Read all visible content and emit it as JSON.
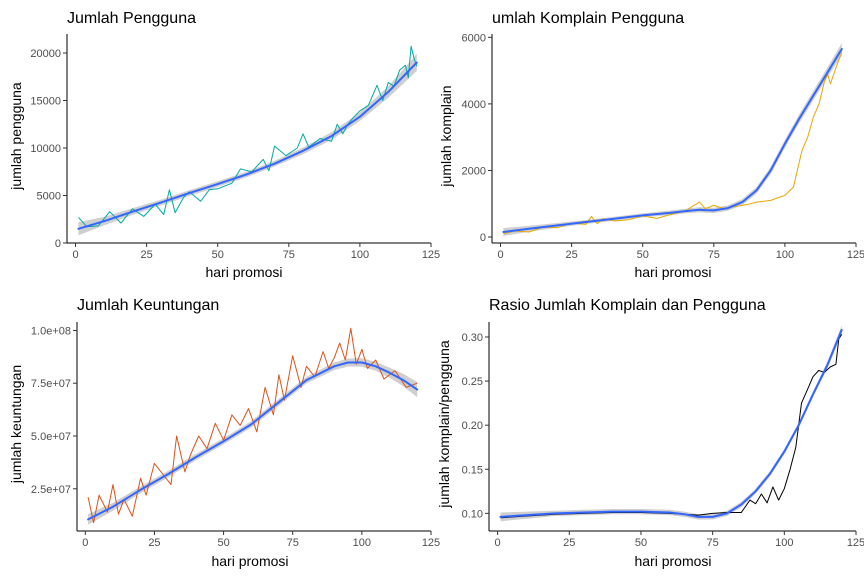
{
  "chart_data": [
    {
      "type": "line",
      "title": "Jumlah Pengguna",
      "xlabel": "hari promosi",
      "ylabel": "jumlah pengguna",
      "xlim": [
        -3,
        125
      ],
      "ylim": [
        0,
        22000
      ],
      "x_ticks": [
        0,
        25,
        50,
        75,
        100,
        125
      ],
      "x_tick_labels": [
        "0",
        "25",
        "50",
        "75",
        "100",
        "125"
      ],
      "y_ticks": [
        0,
        5000,
        10000,
        15000,
        20000
      ],
      "y_tick_labels": [
        "0",
        "5000",
        "10000",
        "15000",
        "20000"
      ],
      "series": [
        {
          "role": "data",
          "color": "#00a9a5",
          "x": [
            1,
            4,
            8,
            12,
            16,
            20,
            24,
            28,
            31,
            33,
            35,
            38,
            40,
            44,
            47,
            50,
            55,
            58,
            62,
            66,
            68,
            70,
            74,
            78,
            80,
            82,
            86,
            90,
            92,
            94,
            96,
            98,
            100,
            103,
            106,
            108,
            110,
            112,
            114,
            116,
            117,
            118,
            119,
            120
          ],
          "y": [
            2700,
            1700,
            1800,
            3300,
            2100,
            3600,
            2800,
            4100,
            3000,
            5600,
            3200,
            4800,
            5400,
            4400,
            5600,
            5700,
            6300,
            7800,
            7500,
            8800,
            7600,
            10200,
            9200,
            10000,
            11500,
            10100,
            11000,
            10700,
            12500,
            11500,
            12600,
            13300,
            13900,
            14500,
            16600,
            15000,
            16900,
            16500,
            18200,
            18700,
            17400,
            20700,
            19500,
            18600
          ]
        },
        {
          "role": "smooth",
          "color": "#3366ff",
          "band_color": "#bfbfbf",
          "x": [
            1,
            10,
            20,
            30,
            40,
            50,
            60,
            70,
            80,
            90,
            100,
            110,
            120
          ],
          "y": [
            1500,
            2300,
            3300,
            4250,
            5250,
            6200,
            7200,
            8350,
            9700,
            11250,
            13300,
            15900,
            19000
          ],
          "band_halfwidth": [
            700,
            450,
            350,
            300,
            300,
            300,
            300,
            300,
            350,
            400,
            450,
            600,
            900
          ]
        }
      ]
    },
    {
      "type": "line",
      "title": "umlah Komplain Pengguna",
      "xlabel": "hari promosi",
      "ylabel": "jumlah komplain",
      "xlim": [
        -3,
        125
      ],
      "ylim": [
        -180,
        6100
      ],
      "x_ticks": [
        0,
        25,
        50,
        75,
        100,
        125
      ],
      "x_tick_labels": [
        "0",
        "25",
        "50",
        "75",
        "100",
        "125"
      ],
      "y_ticks": [
        0,
        2000,
        4000,
        6000
      ],
      "y_tick_labels": [
        "0",
        "2000",
        "4000",
        "6000"
      ],
      "series": [
        {
          "role": "data",
          "color": "#e6a700",
          "x": [
            1,
            5,
            10,
            15,
            20,
            25,
            30,
            32,
            34,
            36,
            40,
            45,
            50,
            55,
            60,
            65,
            68,
            70,
            72,
            75,
            78,
            80,
            85,
            88,
            90,
            95,
            100,
            103,
            106,
            108,
            110,
            112,
            114,
            115,
            116,
            118,
            120
          ],
          "y": [
            100,
            180,
            150,
            300,
            280,
            420,
            380,
            620,
            400,
            550,
            480,
            520,
            630,
            560,
            680,
            780,
            950,
            1050,
            850,
            950,
            870,
            880,
            950,
            1000,
            1050,
            1100,
            1250,
            1500,
            2600,
            3000,
            3600,
            4000,
            4700,
            4900,
            4600,
            5100,
            5550
          ]
        },
        {
          "role": "smooth",
          "color": "#3366ff",
          "band_color": "#bfbfbf",
          "x": [
            1,
            10,
            20,
            30,
            40,
            50,
            60,
            65,
            70,
            72,
            75,
            80,
            85,
            90,
            95,
            100,
            105,
            110,
            115,
            120
          ],
          "y": [
            150,
            250,
            350,
            450,
            550,
            650,
            730,
            780,
            820,
            810,
            800,
            870,
            1050,
            1400,
            2000,
            2800,
            3550,
            4250,
            4950,
            5650
          ],
          "band_halfwidth": [
            120,
            90,
            70,
            60,
            60,
            60,
            70,
            70,
            80,
            80,
            80,
            80,
            90,
            100,
            110,
            120,
            130,
            140,
            150,
            180
          ]
        }
      ]
    },
    {
      "type": "line",
      "title": "Jumlah Keuntungan",
      "xlabel": "hari promosi",
      "ylabel": "jumlah keuntungan",
      "xlim": [
        -3,
        125
      ],
      "ylim": [
        5000000,
        104000000
      ],
      "x_ticks": [
        0,
        25,
        50,
        75,
        100,
        125
      ],
      "x_tick_labels": [
        "0",
        "25",
        "50",
        "75",
        "100",
        "125"
      ],
      "y_ticks": [
        25000000,
        50000000,
        75000000,
        100000000
      ],
      "y_tick_labels": [
        "2.5e+07",
        "5.0e+07",
        "7.5e+07",
        "1.0e+08"
      ],
      "series": [
        {
          "role": "data",
          "color": "#d95319",
          "x": [
            1,
            3,
            5,
            8,
            10,
            12,
            14,
            17,
            20,
            22,
            25,
            28,
            31,
            33,
            36,
            38,
            41,
            44,
            47,
            50,
            53,
            56,
            59,
            62,
            65,
            68,
            70,
            72,
            75,
            78,
            80,
            83,
            86,
            88,
            90,
            92,
            94,
            96,
            98,
            100,
            102,
            105,
            108,
            112,
            116,
            120
          ],
          "y": [
            21000000,
            9000000,
            22000000,
            14000000,
            27000000,
            13000000,
            20000000,
            12000000,
            30000000,
            22000000,
            37000000,
            32000000,
            27000000,
            50000000,
            33000000,
            41000000,
            50000000,
            44000000,
            56000000,
            48000000,
            60000000,
            55000000,
            63000000,
            52000000,
            73000000,
            60000000,
            79000000,
            67000000,
            88000000,
            73000000,
            83000000,
            78000000,
            90000000,
            82000000,
            87000000,
            94000000,
            86000000,
            101000000,
            84000000,
            91000000,
            82000000,
            86000000,
            77000000,
            81000000,
            73000000,
            75000000
          ]
        },
        {
          "role": "smooth",
          "color": "#3366ff",
          "band_color": "#bfbfbf",
          "x": [
            1,
            10,
            20,
            30,
            40,
            50,
            60,
            70,
            80,
            90,
            95,
            100,
            105,
            110,
            115,
            120
          ],
          "y": [
            10500000,
            16500000,
            24500000,
            32000000,
            40000000,
            47500000,
            55500000,
            66000000,
            76500000,
            83000000,
            84800000,
            84800000,
            83000000,
            80000000,
            76500000,
            72000000
          ],
          "band_halfwidth": [
            2500000,
            1900000,
            1600000,
            1500000,
            1500000,
            1500000,
            1500000,
            1600000,
            1600000,
            1800000,
            1900000,
            2000000,
            2100000,
            2400000,
            2900000,
            3600000
          ]
        }
      ]
    },
    {
      "type": "line",
      "title": "Rasio Jumlah Komplain dan Pengguna",
      "xlabel": "hari promosi",
      "ylabel": "jumlah komplain/pengguna",
      "xlim": [
        -3,
        125
      ],
      "ylim": [
        0.08,
        0.317
      ],
      "x_ticks": [
        0,
        25,
        50,
        75,
        100,
        125
      ],
      "x_tick_labels": [
        "0",
        "25",
        "50",
        "75",
        "100",
        "125"
      ],
      "y_ticks": [
        0.1,
        0.15,
        0.2,
        0.25,
        0.3
      ],
      "y_tick_labels": [
        "0.10",
        "0.15",
        "0.20",
        "0.25",
        "0.30"
      ],
      "series": [
        {
          "role": "data",
          "color": "#000000",
          "x": [
            1,
            10,
            20,
            30,
            40,
            50,
            60,
            70,
            75,
            80,
            85,
            88,
            90,
            92,
            94,
            96,
            98,
            100,
            102,
            104,
            106,
            108,
            110,
            112,
            114,
            116,
            118,
            119,
            120
          ],
          "y": [
            0.095,
            0.097,
            0.099,
            0.1,
            0.101,
            0.101,
            0.1,
            0.098,
            0.1,
            0.101,
            0.101,
            0.115,
            0.111,
            0.122,
            0.112,
            0.13,
            0.115,
            0.128,
            0.15,
            0.175,
            0.225,
            0.24,
            0.255,
            0.262,
            0.26,
            0.266,
            0.269,
            0.298,
            0.303
          ]
        },
        {
          "role": "smooth",
          "color": "#3366ff",
          "band_color": "#bfbfbf",
          "x": [
            1,
            10,
            20,
            30,
            40,
            50,
            60,
            65,
            70,
            75,
            80,
            85,
            90,
            95,
            100,
            105,
            110,
            115,
            120
          ],
          "y": [
            0.096,
            0.098,
            0.1,
            0.101,
            0.102,
            0.102,
            0.101,
            0.099,
            0.096,
            0.096,
            0.1,
            0.11,
            0.125,
            0.145,
            0.17,
            0.2,
            0.235,
            0.268,
            0.308
          ],
          "band_halfwidth": [
            0.005,
            0.004,
            0.003,
            0.003,
            0.003,
            0.003,
            0.003,
            0.003,
            0.003,
            0.003,
            0.003,
            0.003,
            0.003,
            0.003,
            0.003,
            0.003,
            0.003,
            0.004,
            0.005
          ]
        }
      ]
    }
  ]
}
